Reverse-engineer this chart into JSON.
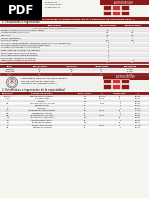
{
  "title": "ESTADISTICAS DE POSTULANTES E INGRESANTES EN EL CONCURSO DE ADMISION 2021-1",
  "header_color": "#8B1A1A",
  "bg_color": "#f5f5f0",
  "table1_rows": [
    [
      "Varones inscritos en el concurso (POSTULANTES)",
      "83",
      "27"
    ],
    [
      "Mujeres inscritas en el concurso",
      "276",
      "102"
    ],
    [
      "Ingresantes",
      "178",
      "102"
    ],
    [
      "Varones (Ingresantes)",
      "67",
      "27"
    ],
    [
      "TOTAL DE 1 TURNO",
      "359",
      "129"
    ],
    [
      "TOTAL DE 2 TURNO (Modalidades de ingreso directo sin concurso de admision)",
      "9",
      "1"
    ],
    [
      "VACANTES OFERTADAS POR LA ESCUELA PROFESIONAL",
      "1",
      ""
    ],
    [
      "VACANTES ADICIONALES A LAS OFERTADAS",
      "8",
      ""
    ],
    [
      "INGRESANTES DE LA ESCUELA PROFESIONAL",
      "0",
      ""
    ],
    [
      "POSTULANTES POR VACANTE (2 de la EP)",
      "0",
      ""
    ],
    [
      "TOTAL INGRESANTES (Suma de los turno)",
      "0",
      ""
    ],
    [
      "POSTULANTES MUJERES (1 de los turno)",
      "0",
      ""
    ],
    [
      "INGRESANTES MUJERES (1 de los turno)",
      "0",
      "5"
    ],
    [
      "TOTAL",
      "368",
      "130"
    ]
  ],
  "table2_headers": [
    "SEXO",
    "POSTULANTES",
    "CONCURSO",
    "INGRESANTES",
    "PORCENTAJE"
  ],
  "table2_rows": [
    [
      "FEMENINO",
      "303",
      "279",
      "103",
      "33.76%"
    ],
    [
      "MASCULINO",
      "65",
      "80",
      "27",
      "33.75%"
    ],
    [
      "TOTAL",
      "368",
      "359",
      "130",
      "36.31%"
    ]
  ],
  "footer_text1": "Universidad Nacional de Huancavelica",
  "footer_text2": "Oficina Central de Admision",
  "footer_text3": "Concurso de Admision 2021-1",
  "section2_title": "2. Estadisticas e ingresantes de la especialidad",
  "table3_headers": [
    "ESPECIALID.",
    "NOMBRE DE ESCUELA",
    "POSTULANTES",
    "%",
    "INGRESANTES",
    "%"
  ],
  "table3_rows": [
    [
      "CIENCIAS",
      "Medicina Humana y Ciencias",
      "303",
      "1.0016%",
      "68",
      "6.098%"
    ],
    [
      "CC.SS.",
      "Ciencias Sociales",
      "186",
      "1.016%",
      "35",
      "5.091%"
    ],
    [
      "",
      "Nutricion",
      "100",
      "",
      "0",
      "5.090%"
    ],
    [
      "ING.",
      "Ingenieria Civil de las Ciencias",
      "77",
      "1.09%",
      "0",
      "5.090%"
    ],
    [
      "",
      "Educacion Inicial",
      "84",
      "",
      "9",
      "5.091%"
    ],
    [
      "AG.",
      "Agricultura",
      "43",
      "",
      "0",
      "5.090%"
    ],
    [
      "COA",
      "Contabilidad de la de las Ciencias",
      "136",
      "1.009%",
      "67",
      "21.039%"
    ],
    [
      "FOA",
      "Tecnologia de Alimentos",
      "75",
      "",
      "0",
      "5.070%"
    ],
    [
      "FOB",
      "Bioquimica de las Ciencias",
      "23",
      "1.009%",
      "1",
      "4.015%"
    ],
    [
      "FCC",
      "Ingenieria de las Computacion",
      "109",
      "",
      "57",
      "5.071%"
    ],
    [
      "FIA",
      "Agricultura de las Ciencias",
      "89",
      "",
      "1",
      "5.079%"
    ],
    [
      "FIB",
      "Biologia de las Ciencias",
      "109",
      "",
      "57",
      "5.071%"
    ],
    [
      "FIN",
      "Nutricion de las Ciencias",
      "81",
      "1.009%",
      "42",
      "12.060%"
    ],
    [
      "FOA",
      "Educacion Inicial de las",
      "83",
      "",
      "1",
      "5.072%"
    ]
  ]
}
